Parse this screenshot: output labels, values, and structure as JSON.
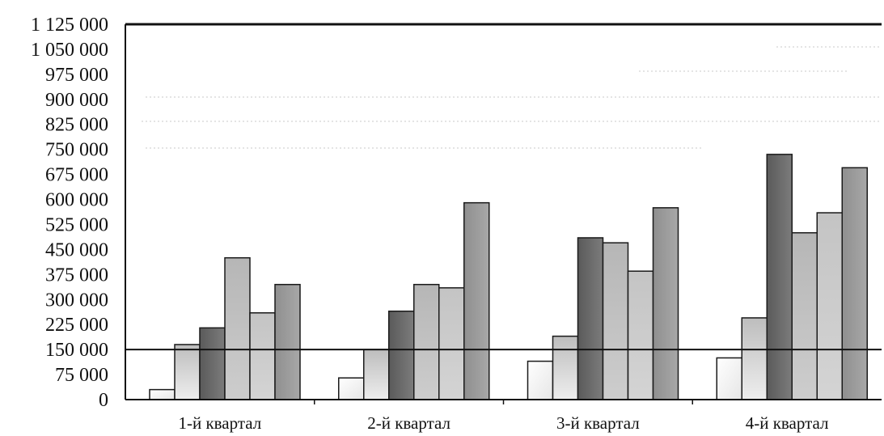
{
  "chart_data": {
    "type": "bar",
    "title": "",
    "xlabel": "",
    "ylabel": "",
    "ylim": [
      0,
      1125000
    ],
    "ytick_labels": [
      "0",
      "75 000",
      "150 000",
      "225 000",
      "300 000",
      "375 000",
      "450 000",
      "525 000",
      "600 000",
      "675 000",
      "750 000",
      "825 000",
      "900 000",
      "975 000",
      "1 050 000",
      "1 125 000"
    ],
    "ytick_values": [
      0,
      75000,
      150000,
      225000,
      300000,
      375000,
      450000,
      525000,
      600000,
      675000,
      750000,
      825000,
      900000,
      975000,
      1050000,
      1125000
    ],
    "categories": [
      "1-й квартал",
      "2-й квартал",
      "3-й квартал",
      "4-й квартал"
    ],
    "reference_line": 150000,
    "grid": false,
    "legend": "none",
    "series": [
      {
        "values": [
          30000,
          65000,
          115000,
          125000
        ],
        "color": "#f4f4f4"
      },
      {
        "values": [
          165000,
          150000,
          190000,
          245000
        ],
        "color": "#cfcfcf"
      },
      {
        "values": [
          215000,
          265000,
          485000,
          735000
        ],
        "color": "#6e6e6e"
      },
      {
        "values": [
          425000,
          345000,
          470000,
          500000
        ],
        "color": "#bdbdbd"
      },
      {
        "values": [
          260000,
          335000,
          385000,
          560000
        ],
        "color": "#c8c8c8"
      },
      {
        "values": [
          345000,
          590000,
          575000,
          695000
        ],
        "color": "#9a9a9a"
      }
    ]
  }
}
